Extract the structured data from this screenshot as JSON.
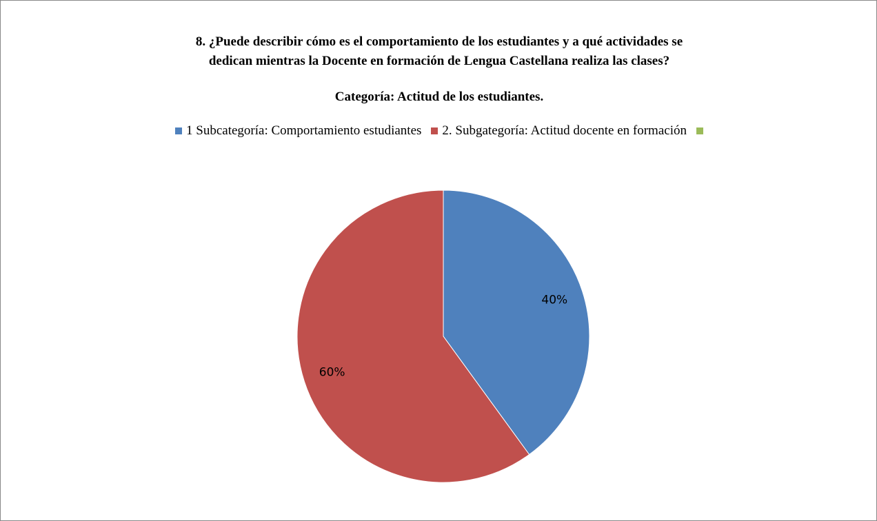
{
  "chart_data": {
    "type": "pie",
    "title": [
      "8. ¿Puede describir cómo es el comportamiento  de los estudiantes y a qué actividades  se",
      "dedican  mientras la Docente en formación  de Lengua Castellana realiza las clases?"
    ],
    "subtitle": "Categoría:  Actitud de los estudiantes.",
    "categories": [
      "1 Subcategoría:  Comportamiento estudiantes",
      "2. Subgategoría:  Actitud docente en formación",
      null
    ],
    "values": [
      40,
      60,
      0
    ],
    "value_labels": [
      "40%",
      "60%",
      null
    ],
    "colors": [
      "#4f81bd",
      "#c0504d",
      "#9bbb59"
    ]
  }
}
